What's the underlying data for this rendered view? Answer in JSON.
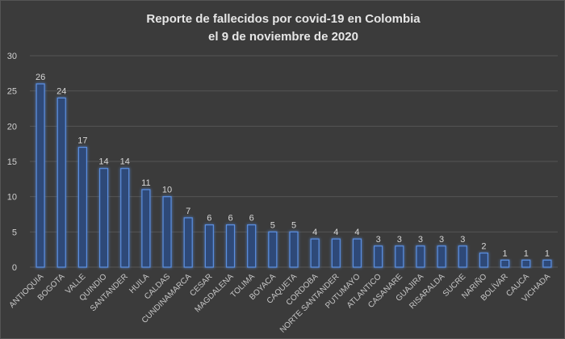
{
  "chart_data": {
    "type": "bar",
    "title_line1": "Reporte de fallecidos por covid-19 en Colombia",
    "title_line2": "el 9 de noviembre de 2020",
    "categories": [
      "ANTIOQUIA",
      "BOGOTA",
      "VALLE",
      "QUINDIO",
      "SANTANDER",
      "HUILA",
      "CALDAS",
      "CUNDINAMARCA",
      "CESAR",
      "MAGDALENA",
      "TOLIMA",
      "BOYACA",
      "CAQUETA",
      "CORDOBA",
      "NORTE SANTANDER",
      "PUTUMAYO",
      "ATLANTICO",
      "CASANARE",
      "GUAJIRA",
      "RISARALDA",
      "SUCRE",
      "NARIÑO",
      "BOLÍVAR",
      "CAUCA",
      "VICHADA"
    ],
    "values": [
      26,
      24,
      17,
      14,
      14,
      11,
      10,
      7,
      6,
      6,
      6,
      5,
      5,
      4,
      4,
      4,
      3,
      3,
      3,
      3,
      3,
      2,
      1,
      1,
      1
    ],
    "ylim": [
      0,
      30
    ],
    "yticks": [
      "0",
      "5",
      "10",
      "15",
      "20",
      "25",
      "30"
    ],
    "grid": true,
    "data_labels": true,
    "colors": {
      "bar_fill": "#2f4a78",
      "bar_edge": "#5b8fe0",
      "background": "#3b3b3b",
      "grid": "#555555"
    }
  }
}
